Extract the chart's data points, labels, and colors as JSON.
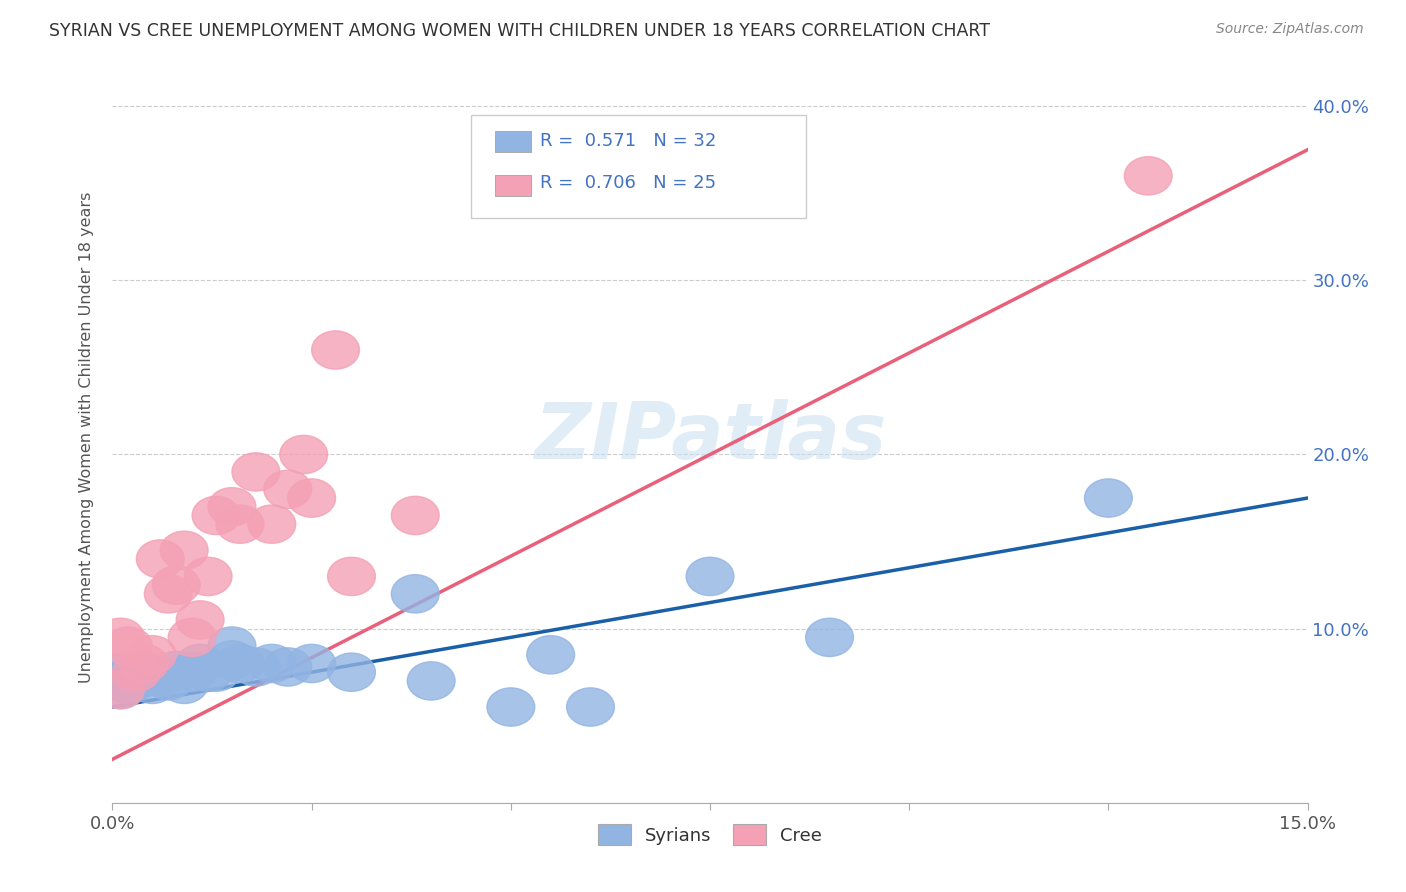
{
  "title": "SYRIAN VS CREE UNEMPLOYMENT AMONG WOMEN WITH CHILDREN UNDER 18 YEARS CORRELATION CHART",
  "source": "Source: ZipAtlas.com",
  "ylabel": "Unemployment Among Women with Children Under 18 years",
  "xlim": [
    0.0,
    0.15
  ],
  "ylim": [
    -0.01,
    0.42
  ],
  "plot_ylim": [
    0.0,
    0.42
  ],
  "xtick_pos": [
    0.0,
    0.025,
    0.05,
    0.075,
    0.1,
    0.125,
    0.15
  ],
  "xtick_labels": [
    "0.0%",
    "",
    "",
    "",
    "",
    "",
    "15.0%"
  ],
  "ytick_positions": [
    0.0,
    0.1,
    0.2,
    0.3,
    0.4
  ],
  "ytick_labels_right": [
    "",
    "10.0%",
    "20.0%",
    "30.0%",
    "40.0%"
  ],
  "watermark": "ZIPatlas",
  "legend_text_color": "#4472c4",
  "syrians_color": "#92b4e3",
  "cree_color": "#f4a0b5",
  "syrians_line_color": "#1a5fa8",
  "cree_line_color": "#e8607a",
  "background_color": "#ffffff",
  "syrians_x": [
    0.001,
    0.001,
    0.001,
    0.002,
    0.002,
    0.003,
    0.004,
    0.005,
    0.006,
    0.007,
    0.008,
    0.009,
    0.01,
    0.011,
    0.012,
    0.013,
    0.015,
    0.015,
    0.016,
    0.018,
    0.02,
    0.022,
    0.025,
    0.03,
    0.038,
    0.04,
    0.05,
    0.055,
    0.06,
    0.075,
    0.09,
    0.125
  ],
  "syrians_y": [
    0.065,
    0.07,
    0.075,
    0.068,
    0.072,
    0.07,
    0.075,
    0.068,
    0.072,
    0.07,
    0.076,
    0.068,
    0.075,
    0.08,
    0.075,
    0.075,
    0.082,
    0.09,
    0.08,
    0.078,
    0.08,
    0.078,
    0.08,
    0.075,
    0.12,
    0.07,
    0.055,
    0.085,
    0.055,
    0.13,
    0.095,
    0.175
  ],
  "cree_x": [
    0.001,
    0.001,
    0.002,
    0.003,
    0.004,
    0.005,
    0.006,
    0.007,
    0.008,
    0.009,
    0.01,
    0.011,
    0.012,
    0.013,
    0.015,
    0.016,
    0.018,
    0.02,
    0.022,
    0.024,
    0.025,
    0.028,
    0.03,
    0.038,
    0.13
  ],
  "cree_y": [
    0.065,
    0.095,
    0.09,
    0.075,
    0.08,
    0.085,
    0.14,
    0.12,
    0.125,
    0.145,
    0.095,
    0.105,
    0.13,
    0.165,
    0.17,
    0.16,
    0.19,
    0.16,
    0.18,
    0.2,
    0.175,
    0.26,
    0.13,
    0.165,
    0.36
  ]
}
